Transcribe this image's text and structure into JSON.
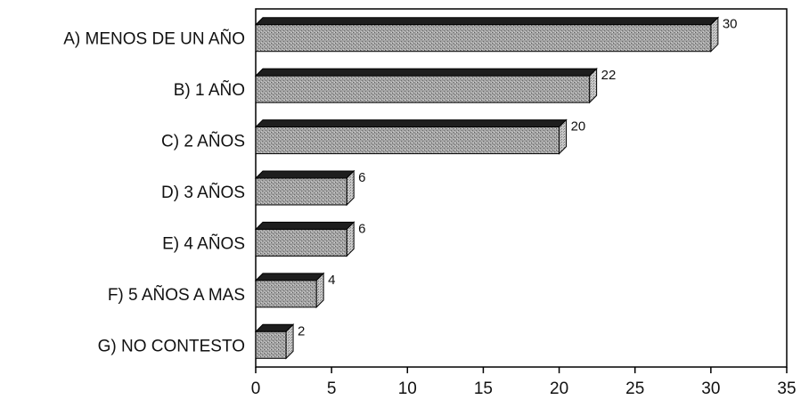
{
  "chart_data": {
    "type": "bar",
    "orientation": "horizontal",
    "style": "3d",
    "title": "",
    "xlabel": "",
    "ylabel": "",
    "categories": [
      "A) MENOS DE UN AÑO",
      "B) 1 AÑO",
      "C) 2 AÑOS",
      "D) 3 AÑOS",
      "E) 4 AÑOS",
      "F) 5 AÑOS A MAS",
      "G) NO CONTESTO"
    ],
    "values": [
      30,
      22,
      20,
      6,
      6,
      4,
      2
    ],
    "xlim": [
      0,
      35
    ],
    "xticks": [
      0,
      5,
      10,
      15,
      20,
      25,
      30,
      35
    ],
    "grid": false,
    "legend": "none",
    "colors": {
      "bar_front": "#9a9a9a",
      "bar_top": "#1e1e1e",
      "bar_side": "#c4c4c4",
      "axis": "#000000"
    }
  }
}
